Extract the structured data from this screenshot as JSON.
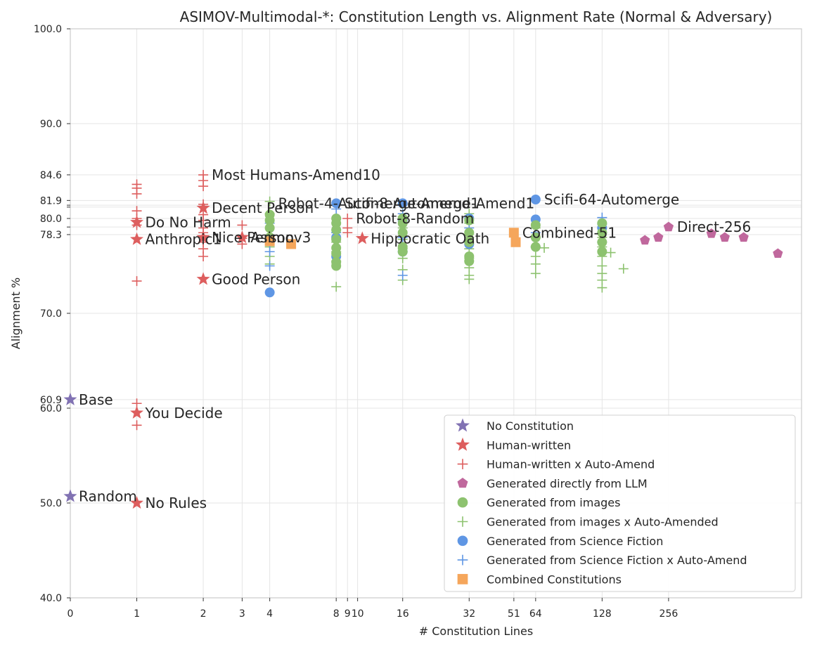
{
  "chart_data": {
    "type": "scatter",
    "title": "ASIMOV-Multimodal-*: Constitution Length vs. Alignment Rate (Normal & Adversary)",
    "xlabel": "# Constitution Lines",
    "ylabel": "Alignment %",
    "xscale": "symlog2",
    "xlim": [
      0,
      1024
    ],
    "ylim": [
      40,
      100
    ],
    "xticks": [
      0,
      1,
      2,
      3,
      4,
      8,
      9,
      10,
      16,
      32,
      51,
      64,
      128,
      256
    ],
    "xtick_labels": [
      "0",
      "1",
      "2",
      "3",
      "4",
      "8",
      "9",
      "10",
      "16",
      "32",
      "51",
      "64",
      "128",
      "256"
    ],
    "yticks": [
      40,
      50,
      60,
      60.9,
      70,
      78.3,
      79.1,
      80,
      81.2,
      81.4,
      81.9,
      84.6,
      90,
      100
    ],
    "ytick_labels": [
      "40.0",
      "50.0",
      "60.0",
      "60.9",
      "70.0",
      "78.3",
      "",
      "80.0",
      "",
      "",
      "81.9",
      "84.6",
      "90.0",
      "100.0"
    ],
    "legend_location": "lower-right",
    "series": [
      {
        "name": "No Constitution",
        "marker": "star",
        "color": "#8172B3",
        "points": [
          [
            0,
            60.9
          ],
          [
            0,
            50.7
          ]
        ]
      },
      {
        "name": "Human-written",
        "marker": "star",
        "color": "#DD5E5E",
        "points": [
          [
            1,
            79.6
          ],
          [
            1,
            77.8
          ],
          [
            1,
            59.5
          ],
          [
            1,
            50.0
          ],
          [
            2,
            81.1
          ],
          [
            2,
            78.0
          ],
          [
            2,
            73.6
          ],
          [
            3,
            78.0
          ],
          [
            10.5,
            77.9
          ]
        ]
      },
      {
        "name": "Human-written x Auto-Amend",
        "marker": "plus",
        "color": "#DD5E5E",
        "points": [
          [
            1,
            83.6
          ],
          [
            1,
            83.2
          ],
          [
            1,
            82.6
          ],
          [
            1,
            80.8
          ],
          [
            1,
            80.0
          ],
          [
            1,
            79.3
          ],
          [
            1,
            73.4
          ],
          [
            1,
            60.5
          ],
          [
            1,
            58.2
          ],
          [
            2,
            84.6
          ],
          [
            2,
            84.0
          ],
          [
            2,
            83.4
          ],
          [
            2,
            81.5
          ],
          [
            2,
            80.4
          ],
          [
            2,
            79.8
          ],
          [
            2,
            79.0
          ],
          [
            2,
            78.5
          ],
          [
            2,
            77.5
          ],
          [
            2,
            76.8
          ],
          [
            2,
            76.0
          ],
          [
            3,
            79.3
          ],
          [
            3,
            77.9
          ],
          [
            3,
            77.3
          ],
          [
            9,
            80.0
          ],
          [
            9,
            79.0
          ],
          [
            9,
            78.5
          ]
        ]
      },
      {
        "name": "Generated directly from LLM",
        "marker": "pentagon",
        "color": "#C0689D",
        "points": [
          [
            256,
            79.1
          ],
          [
            200,
            77.7
          ],
          [
            230,
            78.0
          ],
          [
            400,
            78.4
          ],
          [
            460,
            78.0
          ],
          [
            560,
            78.0
          ],
          [
            800,
            76.3
          ]
        ]
      },
      {
        "name": "Generated from images",
        "marker": "circle",
        "color": "#8DC26F",
        "points": [
          [
            4,
            80.4
          ],
          [
            4,
            79.8
          ],
          [
            4,
            79.0
          ],
          [
            4,
            78.0
          ],
          [
            8,
            80.0
          ],
          [
            8,
            79.5
          ],
          [
            8,
            78.8
          ],
          [
            8,
            77.8
          ],
          [
            8,
            76.9
          ],
          [
            8,
            76.3
          ],
          [
            8,
            75.4
          ],
          [
            8,
            75.0
          ],
          [
            16,
            80.0
          ],
          [
            16,
            79.5
          ],
          [
            16,
            78.5
          ],
          [
            16,
            77.0
          ],
          [
            16,
            76.5
          ],
          [
            32,
            79.8
          ],
          [
            32,
            78.5
          ],
          [
            32,
            77.5
          ],
          [
            32,
            76.0
          ],
          [
            32,
            75.5
          ],
          [
            64,
            79.3
          ],
          [
            64,
            78.0
          ],
          [
            64,
            77.0
          ],
          [
            128,
            79.5
          ],
          [
            128,
            78.5
          ],
          [
            128,
            77.5
          ],
          [
            128,
            76.5
          ]
        ]
      },
      {
        "name": "Generated from images x Auto-Amended",
        "marker": "plus",
        "color": "#8DC26F",
        "points": [
          [
            4,
            81.8
          ],
          [
            4,
            80.5
          ],
          [
            4,
            77.0
          ],
          [
            4,
            76.0
          ],
          [
            4,
            75.2
          ],
          [
            8,
            78.5
          ],
          [
            8,
            77.5
          ],
          [
            8,
            76.5
          ],
          [
            8,
            75.5
          ],
          [
            8,
            72.8
          ],
          [
            16,
            81.5
          ],
          [
            16,
            80.2
          ],
          [
            16,
            79.0
          ],
          [
            16,
            77.8
          ],
          [
            16,
            76.8
          ],
          [
            16,
            75.8
          ],
          [
            16,
            74.6
          ],
          [
            16,
            73.5
          ],
          [
            32,
            80.5
          ],
          [
            32,
            79.5
          ],
          [
            32,
            78.0
          ],
          [
            32,
            76.8
          ],
          [
            32,
            75.8
          ],
          [
            32,
            74.8
          ],
          [
            32,
            74.0
          ],
          [
            32,
            73.6
          ],
          [
            64,
            79.0
          ],
          [
            64,
            78.0
          ],
          [
            64,
            77.0
          ],
          [
            64,
            76.0
          ],
          [
            64,
            75.2
          ],
          [
            64,
            74.2
          ],
          [
            70,
            76.9
          ],
          [
            128,
            79.0
          ],
          [
            128,
            78.0
          ],
          [
            128,
            77.0
          ],
          [
            128,
            76.0
          ],
          [
            128,
            75.0
          ],
          [
            128,
            74.2
          ],
          [
            128,
            73.5
          ],
          [
            128,
            72.7
          ],
          [
            140,
            76.4
          ],
          [
            160,
            74.7
          ]
        ]
      },
      {
        "name": "Generated from Science Fiction",
        "marker": "circle",
        "color": "#5F96E4",
        "points": [
          [
            4,
            72.2
          ],
          [
            8,
            81.6
          ],
          [
            8,
            78.0
          ],
          [
            8,
            76.0
          ],
          [
            16,
            81.6
          ],
          [
            16,
            79.8
          ],
          [
            16,
            76.5
          ],
          [
            32,
            80.0
          ],
          [
            32,
            77.3
          ],
          [
            64,
            82.0
          ],
          [
            64,
            79.9
          ],
          [
            128,
            79.0
          ]
        ]
      },
      {
        "name": "Generated from Science Fiction x Auto-Amend",
        "marker": "plus",
        "color": "#5F96E4",
        "points": [
          [
            4,
            79.5
          ],
          [
            4,
            77.5
          ],
          [
            4,
            76.5
          ],
          [
            4,
            75.0
          ],
          [
            8,
            81.0
          ],
          [
            8,
            78.5
          ],
          [
            16,
            80.5
          ],
          [
            16,
            78.0
          ],
          [
            16,
            74.0
          ],
          [
            32,
            79.0
          ],
          [
            64,
            78.5
          ],
          [
            64,
            77.0
          ],
          [
            128,
            80.1
          ],
          [
            128,
            79.4
          ],
          [
            128,
            78.5
          ],
          [
            128,
            77.5
          ]
        ]
      },
      {
        "name": "Combined Constitutions",
        "marker": "square",
        "color": "#F5A65B",
        "points": [
          [
            4,
            77.6
          ],
          [
            5,
            77.3
          ],
          [
            51,
            78.5
          ],
          [
            52,
            77.5
          ]
        ]
      }
    ],
    "annotations": [
      {
        "text": "Base",
        "x": 0,
        "y": 60.9
      },
      {
        "text": "Random",
        "x": 0,
        "y": 50.7
      },
      {
        "text": "Do No Harm",
        "x": 1,
        "y": 79.6
      },
      {
        "text": "Anthropic1",
        "x": 1,
        "y": 77.8
      },
      {
        "text": "You Decide",
        "x": 1,
        "y": 59.5
      },
      {
        "text": "No Rules",
        "x": 1,
        "y": 50.0
      },
      {
        "text": "Most Humans-Amend10",
        "x": 2,
        "y": 84.6
      },
      {
        "text": "Decent Person",
        "x": 2,
        "y": 81.1
      },
      {
        "text": "Nice Person",
        "x": 2,
        "y": 78.0
      },
      {
        "text": "Good Person",
        "x": 2,
        "y": 73.6
      },
      {
        "text": "Asimov3",
        "x": 3,
        "y": 78.0
      },
      {
        "text": "Robot-4-Automerge-Amend1",
        "x": 4,
        "y": 81.6
      },
      {
        "text": "Scifi-8-Automerge-Amend1",
        "x": 8,
        "y": 81.6
      },
      {
        "text": "Robot-8-Random",
        "x": 9,
        "y": 80.0
      },
      {
        "text": "Hippocratic Oath",
        "x": 10.5,
        "y": 77.9
      },
      {
        "text": "Scifi-64-Automerge",
        "x": 64,
        "y": 82.0
      },
      {
        "text": "Combined-51",
        "x": 51,
        "y": 78.5
      },
      {
        "text": "Direct-256",
        "x": 256,
        "y": 79.1
      }
    ]
  }
}
